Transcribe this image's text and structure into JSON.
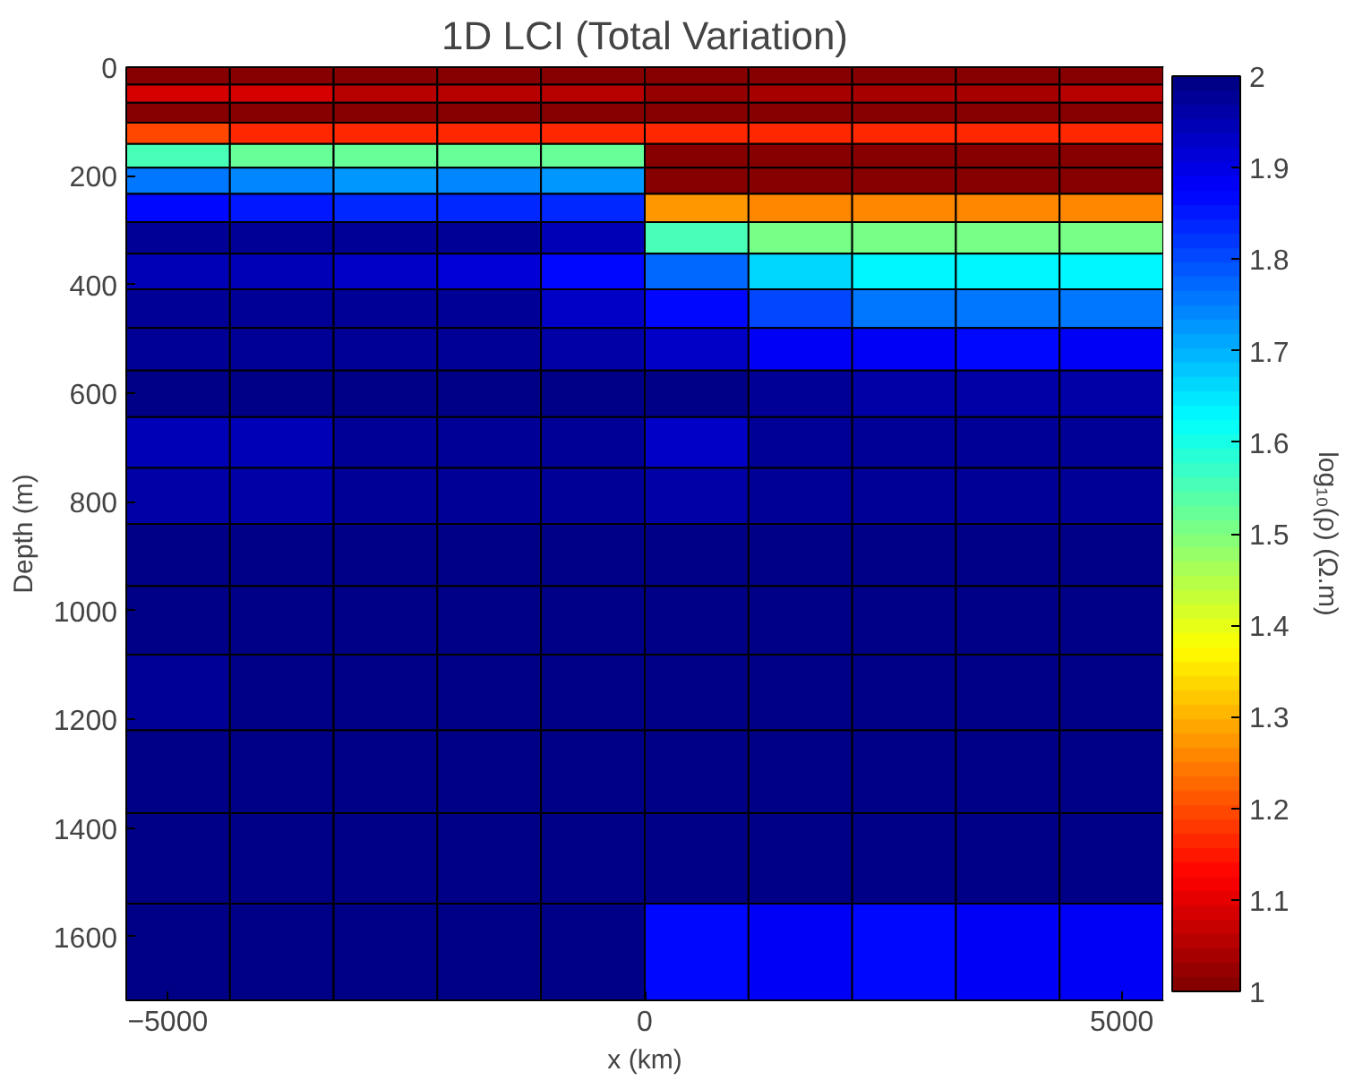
{
  "chart_data": {
    "type": "heatmap",
    "title": "1D LCI (Total Variation)",
    "xlabel": "x (km)",
    "ylabel": "Depth (m)",
    "clabel": "log₁₀(ρ) (Ω.m)",
    "x": [
      -4892,
      -3805,
      -2718,
      -1631,
      -544,
      544,
      1631,
      2718,
      3805,
      4892
    ],
    "y": [
      16,
      48,
      83,
      121,
      162,
      208,
      258,
      312,
      374,
      443,
      517,
      599,
      689,
      786,
      895,
      1015,
      1147,
      1293,
      1452,
      1626
    ],
    "cells": [
      [
        1.0,
        1.0,
        1.0,
        1.0,
        1.0,
        1.0,
        1.0,
        1.0,
        1.0,
        1.0
      ],
      [
        1.09,
        1.08,
        1.06,
        1.06,
        1.06,
        1.03,
        1.04,
        1.04,
        1.04,
        1.05
      ],
      [
        1.0,
        1.0,
        1.0,
        1.0,
        1.0,
        1.0,
        1.0,
        1.0,
        1.0,
        1.0
      ],
      [
        1.19,
        1.17,
        1.17,
        1.17,
        1.17,
        1.17,
        1.17,
        1.17,
        1.17,
        1.17
      ],
      [
        1.55,
        1.53,
        1.53,
        1.53,
        1.52,
        1.0,
        1.0,
        1.0,
        1.0,
        1.0
      ],
      [
        1.75,
        1.74,
        1.73,
        1.74,
        1.73,
        1.0,
        1.0,
        1.0,
        1.0,
        1.0
      ],
      [
        1.86,
        1.85,
        1.84,
        1.83,
        1.83,
        1.28,
        1.25,
        1.25,
        1.25,
        1.25
      ],
      [
        1.97,
        1.97,
        1.97,
        1.97,
        1.94,
        1.55,
        1.5,
        1.5,
        1.5,
        1.5
      ],
      [
        1.94,
        1.94,
        1.93,
        1.92,
        1.86,
        1.78,
        1.67,
        1.64,
        1.64,
        1.64
      ],
      [
        1.98,
        1.98,
        1.98,
        1.97,
        1.93,
        1.87,
        1.8,
        1.75,
        1.75,
        1.75
      ],
      [
        1.98,
        1.98,
        1.97,
        1.98,
        1.96,
        1.93,
        1.89,
        1.88,
        1.87,
        1.88
      ],
      [
        1.99,
        1.99,
        1.99,
        1.99,
        1.99,
        1.99,
        1.97,
        1.96,
        1.96,
        1.96
      ],
      [
        1.94,
        1.94,
        1.97,
        1.98,
        1.98,
        1.93,
        1.98,
        1.98,
        1.98,
        1.98
      ],
      [
        1.96,
        1.96,
        1.98,
        1.98,
        1.98,
        1.96,
        1.97,
        1.98,
        1.98,
        1.98
      ],
      [
        1.99,
        1.99,
        1.99,
        1.99,
        1.99,
        1.99,
        1.99,
        1.99,
        1.99,
        1.99
      ],
      [
        1.99,
        1.99,
        1.99,
        1.99,
        1.99,
        1.99,
        1.99,
        1.99,
        1.99,
        1.99
      ],
      [
        1.98,
        1.99,
        1.99,
        1.99,
        1.99,
        1.99,
        1.99,
        1.99,
        1.99,
        1.99
      ],
      [
        1.99,
        1.99,
        1.99,
        1.99,
        1.99,
        1.99,
        1.99,
        1.99,
        1.99,
        1.99
      ],
      [
        1.99,
        1.99,
        1.99,
        1.99,
        1.99,
        1.99,
        1.99,
        1.99,
        1.99,
        1.99
      ],
      [
        1.99,
        1.99,
        1.99,
        1.99,
        1.99,
        1.86,
        1.88,
        1.87,
        1.88,
        1.89
      ]
    ],
    "xlim": [
      -5435,
      5435
    ],
    "xticks": [
      {
        "value": -5000,
        "label": "−5000"
      },
      0,
      5000
    ],
    "ylim": [
      1717,
      0
    ],
    "yticks": [
      0,
      200,
      400,
      600,
      800,
      1000,
      1200,
      1400,
      1600
    ],
    "clim": [
      1,
      2
    ],
    "cticks": [
      1,
      1.1,
      1.2,
      1.3,
      1.4,
      1.5,
      1.6,
      1.7,
      1.8,
      1.9,
      2
    ]
  }
}
